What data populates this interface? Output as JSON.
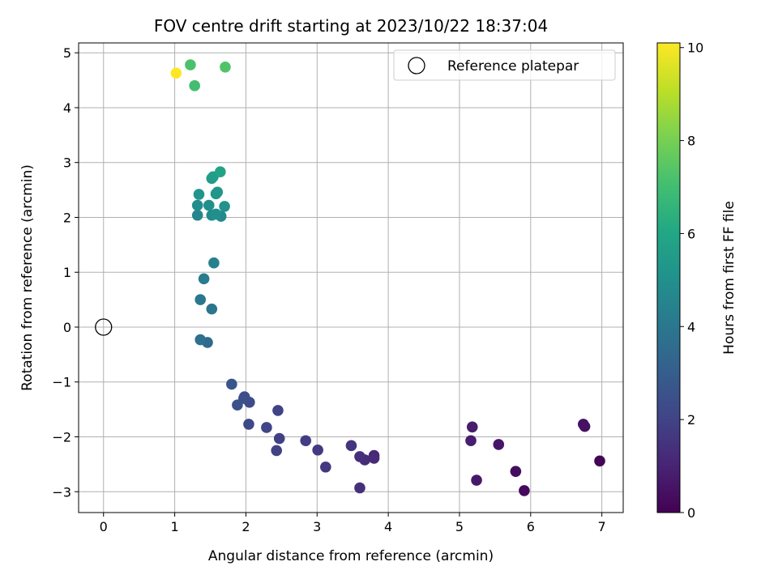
{
  "chart_data": {
    "type": "scatter",
    "title": "FOV centre drift starting at 2023/10/22 18:37:04",
    "xlabel": "Angular distance from reference (arcmin)",
    "ylabel": "Rotation from reference (arcmin)",
    "colorbar_label": "Hours from first FF file",
    "xlim": [
      -0.35,
      7.3
    ],
    "ylim": [
      -3.38,
      5.18
    ],
    "xticks": [
      0,
      1,
      2,
      3,
      4,
      5,
      6,
      7
    ],
    "yticks": [
      -3,
      -2,
      -1,
      0,
      1,
      2,
      3,
      4,
      5
    ],
    "colorbar_range": [
      0,
      10.1
    ],
    "colorbar_ticks": [
      0,
      2,
      4,
      6,
      8,
      10
    ],
    "colormap": "viridis",
    "grid": true,
    "legend": {
      "label": "Reference platepar",
      "placement": "top-right"
    },
    "reference_point": {
      "x": 0,
      "y": 0
    },
    "points": [
      {
        "x": 6.97,
        "y": -2.44,
        "c": 0.1
      },
      {
        "x": 5.91,
        "y": -2.98,
        "c": 0.25
      },
      {
        "x": 5.79,
        "y": -2.63,
        "c": 0.35
      },
      {
        "x": 6.76,
        "y": -1.81,
        "c": 0.45
      },
      {
        "x": 6.74,
        "y": -1.77,
        "c": 0.5
      },
      {
        "x": 5.55,
        "y": -2.14,
        "c": 0.6
      },
      {
        "x": 5.24,
        "y": -2.79,
        "c": 0.7
      },
      {
        "x": 5.18,
        "y": -1.82,
        "c": 0.8
      },
      {
        "x": 5.16,
        "y": -2.07,
        "c": 0.85
      },
      {
        "x": 3.8,
        "y": -2.34,
        "c": 1.1
      },
      {
        "x": 3.8,
        "y": -2.39,
        "c": 1.2
      },
      {
        "x": 3.67,
        "y": -2.42,
        "c": 1.3
      },
      {
        "x": 3.6,
        "y": -2.36,
        "c": 1.35
      },
      {
        "x": 3.6,
        "y": -2.93,
        "c": 1.4
      },
      {
        "x": 3.48,
        "y": -2.16,
        "c": 1.5
      },
      {
        "x": 3.12,
        "y": -2.55,
        "c": 1.6
      },
      {
        "x": 3.01,
        "y": -2.24,
        "c": 1.7
      },
      {
        "x": 2.84,
        "y": -2.07,
        "c": 1.8
      },
      {
        "x": 2.47,
        "y": -2.03,
        "c": 1.9
      },
      {
        "x": 2.43,
        "y": -2.25,
        "c": 1.95
      },
      {
        "x": 2.45,
        "y": -1.52,
        "c": 2.0
      },
      {
        "x": 2.29,
        "y": -1.83,
        "c": 2.1
      },
      {
        "x": 2.04,
        "y": -1.77,
        "c": 2.2
      },
      {
        "x": 2.05,
        "y": -1.37,
        "c": 2.3
      },
      {
        "x": 1.98,
        "y": -1.27,
        "c": 2.4
      },
      {
        "x": 1.97,
        "y": -1.3,
        "c": 2.45
      },
      {
        "x": 1.88,
        "y": -1.42,
        "c": 2.5
      },
      {
        "x": 1.8,
        "y": -1.04,
        "c": 2.7
      },
      {
        "x": 1.46,
        "y": -0.28,
        "c": 3.5
      },
      {
        "x": 1.36,
        "y": -0.23,
        "c": 3.7
      },
      {
        "x": 1.52,
        "y": 0.33,
        "c": 3.9
      },
      {
        "x": 1.36,
        "y": 0.5,
        "c": 4.0
      },
      {
        "x": 1.41,
        "y": 0.88,
        "c": 4.2
      },
      {
        "x": 1.55,
        "y": 1.17,
        "c": 4.4
      },
      {
        "x": 1.32,
        "y": 2.04,
        "c": 4.6
      },
      {
        "x": 1.65,
        "y": 2.02,
        "c": 4.7
      },
      {
        "x": 1.52,
        "y": 2.04,
        "c": 4.8
      },
      {
        "x": 1.32,
        "y": 2.22,
        "c": 4.9
      },
      {
        "x": 1.58,
        "y": 2.06,
        "c": 5.0
      },
      {
        "x": 1.48,
        "y": 2.22,
        "c": 5.0
      },
      {
        "x": 1.7,
        "y": 2.2,
        "c": 5.1
      },
      {
        "x": 1.58,
        "y": 2.43,
        "c": 5.2
      },
      {
        "x": 1.34,
        "y": 2.42,
        "c": 5.2
      },
      {
        "x": 1.6,
        "y": 2.46,
        "c": 5.3
      },
      {
        "x": 1.52,
        "y": 2.71,
        "c": 5.5
      },
      {
        "x": 1.54,
        "y": 2.74,
        "c": 5.6
      },
      {
        "x": 1.64,
        "y": 2.83,
        "c": 5.8
      },
      {
        "x": 1.28,
        "y": 4.4,
        "c": 7.0
      },
      {
        "x": 1.71,
        "y": 4.74,
        "c": 7.3
      },
      {
        "x": 1.22,
        "y": 4.78,
        "c": 7.2
      },
      {
        "x": 1.02,
        "y": 4.63,
        "c": 10.1
      }
    ]
  }
}
